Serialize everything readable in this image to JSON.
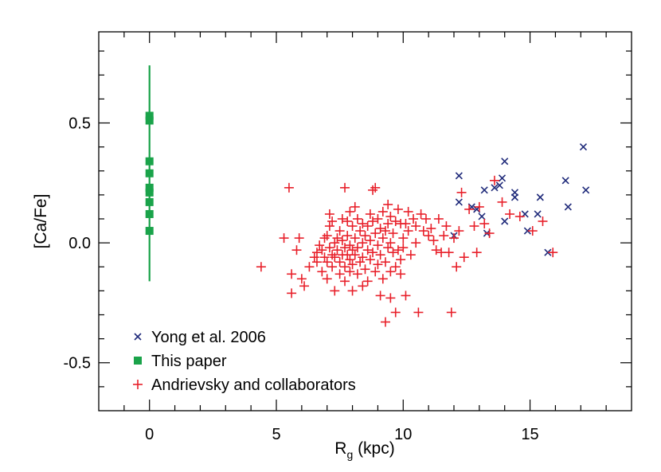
{
  "chart_data": {
    "type": "scatter",
    "xlabel": "R",
    "xlabel_sub": "g",
    "xlabel_unit": " (kpc)",
    "ylabel": "[Ca/Fe]",
    "xlim": [
      -2,
      19
    ],
    "ylim": [
      -0.7,
      0.88
    ],
    "xticks": [
      0,
      5,
      10,
      15
    ],
    "xtick_labels": [
      "0",
      "5",
      "10",
      "15"
    ],
    "yticks": [
      -0.5,
      0.0,
      0.5
    ],
    "ytick_labels": [
      "-0.5",
      "0.0",
      "0.5"
    ],
    "grid": false,
    "legend_position": "bottom-left",
    "series": [
      {
        "name": "Yong et al. 2006",
        "marker": "x",
        "color": "#1f2a7a",
        "points": [
          [
            12.0,
            0.03
          ],
          [
            12.2,
            0.28
          ],
          [
            12.2,
            0.17
          ],
          [
            12.7,
            0.15
          ],
          [
            12.9,
            0.14
          ],
          [
            13.1,
            0.11
          ],
          [
            13.2,
            0.22
          ],
          [
            13.3,
            0.04
          ],
          [
            13.6,
            0.23
          ],
          [
            13.8,
            0.24
          ],
          [
            13.9,
            0.27
          ],
          [
            14.0,
            0.34
          ],
          [
            14.0,
            0.09
          ],
          [
            14.4,
            0.21
          ],
          [
            14.4,
            0.19
          ],
          [
            14.8,
            0.12
          ],
          [
            14.9,
            0.05
          ],
          [
            15.3,
            0.12
          ],
          [
            15.4,
            0.19
          ],
          [
            15.7,
            -0.04
          ],
          [
            16.4,
            0.26
          ],
          [
            16.5,
            0.15
          ],
          [
            17.1,
            0.4
          ],
          [
            17.2,
            0.22
          ]
        ]
      },
      {
        "name": "This paper",
        "marker": "square",
        "color": "#1aa34a",
        "errorbar": [
          -0.16,
          0.74
        ],
        "points": [
          [
            0,
            0.53
          ],
          [
            0,
            0.51
          ],
          [
            0,
            0.34
          ],
          [
            0,
            0.29
          ],
          [
            0,
            0.23
          ],
          [
            0,
            0.21
          ],
          [
            0,
            0.17
          ],
          [
            0,
            0.12
          ],
          [
            0,
            0.05
          ]
        ]
      },
      {
        "name": "Andrievsky and collaborators",
        "marker": "plus",
        "color": "#e8202a",
        "points": [
          [
            4.4,
            -0.1
          ],
          [
            5.3,
            0.02
          ],
          [
            5.5,
            0.23
          ],
          [
            5.6,
            -0.13
          ],
          [
            5.6,
            -0.21
          ],
          [
            5.8,
            -0.03
          ],
          [
            5.9,
            0.02
          ],
          [
            6.0,
            -0.15
          ],
          [
            6.1,
            -0.18
          ],
          [
            6.3,
            -0.1
          ],
          [
            6.5,
            -0.06
          ],
          [
            6.6,
            -0.08
          ],
          [
            6.6,
            -0.04
          ],
          [
            6.7,
            -0.01
          ],
          [
            6.8,
            -0.12
          ],
          [
            6.8,
            -0.03
          ],
          [
            6.9,
            0.02
          ],
          [
            6.9,
            -0.06
          ],
          [
            7.0,
            0.03
          ],
          [
            7.0,
            -0.08
          ],
          [
            7.0,
            -0.15
          ],
          [
            7.1,
            0.12
          ],
          [
            7.1,
            0.07
          ],
          [
            7.1,
            -0.02
          ],
          [
            7.2,
            0.09
          ],
          [
            7.2,
            -0.05
          ],
          [
            7.2,
            -0.1
          ],
          [
            7.3,
            0.0
          ],
          [
            7.3,
            -0.06
          ],
          [
            7.3,
            -0.2
          ],
          [
            7.4,
            0.02
          ],
          [
            7.4,
            -0.03
          ],
          [
            7.5,
            0.05
          ],
          [
            7.5,
            -0.08
          ],
          [
            7.5,
            -0.13
          ],
          [
            7.6,
            0.1
          ],
          [
            7.6,
            0.01
          ],
          [
            7.6,
            -0.05
          ],
          [
            7.7,
            0.23
          ],
          [
            7.7,
            -0.02
          ],
          [
            7.7,
            -0.1
          ],
          [
            7.7,
            -0.16
          ],
          [
            7.8,
            0.09
          ],
          [
            7.8,
            0.03
          ],
          [
            7.8,
            -0.05
          ],
          [
            7.9,
            0.13
          ],
          [
            7.9,
            -0.01
          ],
          [
            7.9,
            -0.07
          ],
          [
            7.9,
            -0.12
          ],
          [
            8.0,
            0.07
          ],
          [
            8.0,
            -0.03
          ],
          [
            8.0,
            -0.09
          ],
          [
            8.0,
            -0.2
          ],
          [
            8.1,
            0.15
          ],
          [
            8.1,
            0.02
          ],
          [
            8.1,
            -0.05
          ],
          [
            8.2,
            0.1
          ],
          [
            8.2,
            -0.02
          ],
          [
            8.2,
            -0.13
          ],
          [
            8.3,
            0.05
          ],
          [
            8.3,
            -0.08
          ],
          [
            8.4,
            0.08
          ],
          [
            8.4,
            0.0
          ],
          [
            8.4,
            -0.06
          ],
          [
            8.4,
            -0.18
          ],
          [
            8.5,
            0.03
          ],
          [
            8.5,
            -0.11
          ],
          [
            8.6,
            0.07
          ],
          [
            8.6,
            -0.03
          ],
          [
            8.6,
            -0.16
          ],
          [
            8.7,
            0.12
          ],
          [
            8.7,
            0.01
          ],
          [
            8.7,
            -0.07
          ],
          [
            8.8,
            0.22
          ],
          [
            8.8,
            0.09
          ],
          [
            8.8,
            -0.04
          ],
          [
            8.9,
            0.23
          ],
          [
            8.9,
            0.04
          ],
          [
            8.9,
            -0.12
          ],
          [
            9.0,
            0.1
          ],
          [
            9.0,
            -0.01
          ],
          [
            9.0,
            -0.09
          ],
          [
            9.1,
            0.06
          ],
          [
            9.1,
            -0.05
          ],
          [
            9.1,
            -0.22
          ],
          [
            9.2,
            0.13
          ],
          [
            9.2,
            0.02
          ],
          [
            9.2,
            -0.15
          ],
          [
            9.3,
            0.05
          ],
          [
            9.3,
            -0.08
          ],
          [
            9.3,
            -0.33
          ],
          [
            9.4,
            0.16
          ],
          [
            9.4,
            0.08
          ],
          [
            9.4,
            -0.02
          ],
          [
            9.5,
            0.11
          ],
          [
            9.5,
            0.0
          ],
          [
            9.5,
            -0.12
          ],
          [
            9.5,
            -0.23
          ],
          [
            9.6,
            0.04
          ],
          [
            9.6,
            -0.04
          ],
          [
            9.7,
            0.09
          ],
          [
            9.7,
            -0.1
          ],
          [
            9.7,
            -0.29
          ],
          [
            9.8,
            0.14
          ],
          [
            9.8,
            -0.03
          ],
          [
            9.9,
            0.08
          ],
          [
            9.9,
            -0.07
          ],
          [
            9.9,
            -0.13
          ],
          [
            10.0,
            0.02
          ],
          [
            10.0,
            -0.02
          ],
          [
            10.1,
            0.08
          ],
          [
            10.1,
            -0.22
          ],
          [
            10.2,
            0.13
          ],
          [
            10.2,
            0.05
          ],
          [
            10.3,
            -0.05
          ],
          [
            10.4,
            0.1
          ],
          [
            10.5,
            0.07
          ],
          [
            10.5,
            0.0
          ],
          [
            10.6,
            -0.29
          ],
          [
            10.7,
            0.12
          ],
          [
            10.8,
            0.05
          ],
          [
            10.9,
            0.1
          ],
          [
            11.0,
            0.03
          ],
          [
            11.1,
            0.06
          ],
          [
            11.2,
            0.01
          ],
          [
            11.3,
            -0.03
          ],
          [
            11.4,
            0.1
          ],
          [
            11.5,
            -0.04
          ],
          [
            11.6,
            0.03
          ],
          [
            11.7,
            0.07
          ],
          [
            11.8,
            -0.04
          ],
          [
            11.9,
            -0.29
          ],
          [
            12.0,
            0.02
          ],
          [
            12.1,
            -0.1
          ],
          [
            12.2,
            0.05
          ],
          [
            12.3,
            0.21
          ],
          [
            12.4,
            -0.06
          ],
          [
            12.6,
            0.14
          ],
          [
            12.8,
            0.07
          ],
          [
            12.9,
            -0.04
          ],
          [
            13.0,
            0.15
          ],
          [
            13.2,
            0.08
          ],
          [
            13.4,
            0.04
          ],
          [
            13.6,
            0.26
          ],
          [
            13.9,
            0.17
          ],
          [
            14.2,
            0.12
          ],
          [
            14.6,
            0.11
          ],
          [
            15.1,
            0.05
          ],
          [
            15.5,
            0.09
          ],
          [
            15.9,
            -0.04
          ]
        ]
      }
    ]
  }
}
